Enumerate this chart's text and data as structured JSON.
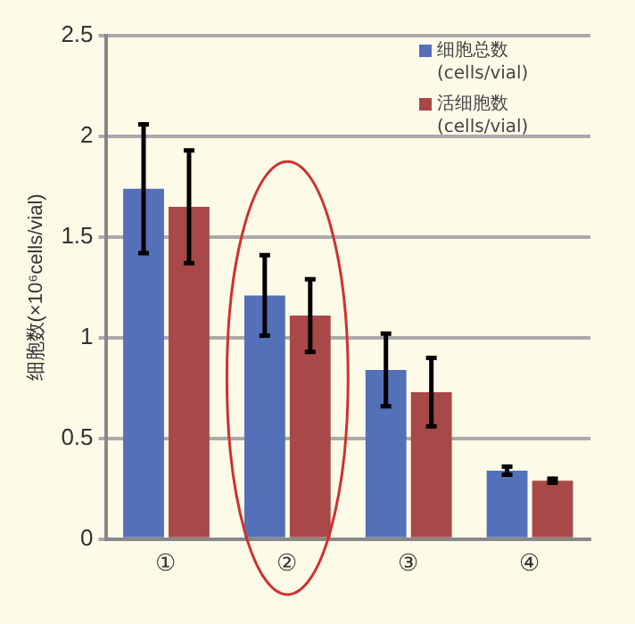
{
  "chart_data": {
    "type": "bar",
    "ylabel": "细胞数(×10⁶cells/vial)",
    "categories": [
      "①",
      "②",
      "③",
      "④"
    ],
    "series": [
      {
        "name": "细胞总数 (cells/vial)",
        "color": "#5470b8",
        "values": [
          1.74,
          1.21,
          0.84,
          0.34
        ],
        "errors": [
          0.32,
          0.2,
          0.18,
          0.02
        ]
      },
      {
        "name": "活细胞数 (cells/vial)",
        "color": "#a84848",
        "values": [
          1.65,
          1.11,
          0.73,
          0.29
        ],
        "errors": [
          0.28,
          0.18,
          0.17,
          0.01
        ]
      }
    ],
    "ylim": [
      0,
      2.5
    ],
    "yticks": [
      0,
      0.5,
      1,
      1.5,
      2,
      2.5
    ],
    "grid": "y",
    "legend": "top right"
  }
}
